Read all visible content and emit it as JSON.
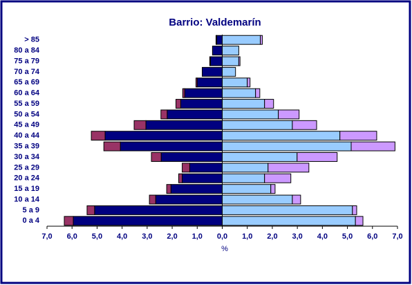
{
  "chart_data": {
    "type": "pyramid",
    "title": "Barrio: Valdemarín",
    "xlabel": "%",
    "categories": [
      "0 a 4",
      "5 a 9",
      "10 a 14",
      "15 a 19",
      "20 a 24",
      "25 a 29",
      "30 a 34",
      "35 a 39",
      "40 a 44",
      "45 a 49",
      "50 a 54",
      "55 a 59",
      "60 a 64",
      "65 a 69",
      "70 a 74",
      "75 a 79",
      "80 a 84",
      "> 85"
    ],
    "series": [
      {
        "color": "#000080",
        "side": "left",
        "values": [
          -5.95,
          -5.1,
          -2.66,
          -2.05,
          -1.6,
          -1.3,
          -2.44,
          -4.07,
          -4.68,
          -3.05,
          -2.2,
          -1.66,
          -1.5,
          -1.0,
          -0.8,
          -0.47,
          -0.39,
          -0.22
        ]
      },
      {
        "color": "#993366",
        "side": "left",
        "values": [
          -0.36,
          -0.3,
          -0.25,
          -0.17,
          -0.14,
          -0.3,
          -0.39,
          -0.66,
          -0.55,
          -0.47,
          -0.25,
          -0.19,
          -0.08,
          -0.05,
          0,
          -0.03,
          0,
          -0.03
        ]
      },
      {
        "color": "#99ccff",
        "side": "right",
        "values": [
          5.32,
          5.2,
          2.8,
          1.94,
          1.69,
          1.83,
          2.99,
          5.15,
          4.7,
          2.8,
          2.24,
          1.69,
          1.33,
          1.0,
          0.53,
          0.66,
          0.66,
          1.52
        ]
      },
      {
        "color": "#cc99ff",
        "side": "right",
        "values": [
          0.3,
          0.17,
          0.33,
          0.17,
          1.05,
          1.63,
          1.6,
          1.75,
          1.47,
          0.97,
          0.83,
          0.36,
          0.17,
          0.11,
          0,
          0.05,
          0,
          0.08
        ]
      }
    ],
    "xlim": [
      -7,
      7
    ],
    "xticks": [
      {
        "value": -7,
        "label": "7,0"
      },
      {
        "value": -6,
        "label": "6,0"
      },
      {
        "value": -5,
        "label": "5,0"
      },
      {
        "value": -4,
        "label": "4,0"
      },
      {
        "value": -3,
        "label": "3,0"
      },
      {
        "value": -2,
        "label": "2,0"
      },
      {
        "value": -1,
        "label": "1,0"
      },
      {
        "value": 0,
        "label": "0,0"
      },
      {
        "value": 1,
        "label": "1,0"
      },
      {
        "value": 2,
        "label": "2,0"
      },
      {
        "value": 3,
        "label": "3,0"
      },
      {
        "value": 4,
        "label": "4,0"
      },
      {
        "value": 5,
        "label": "5,0"
      },
      {
        "value": 6,
        "label": "6,0"
      },
      {
        "value": 7,
        "label": "7,0"
      }
    ]
  }
}
